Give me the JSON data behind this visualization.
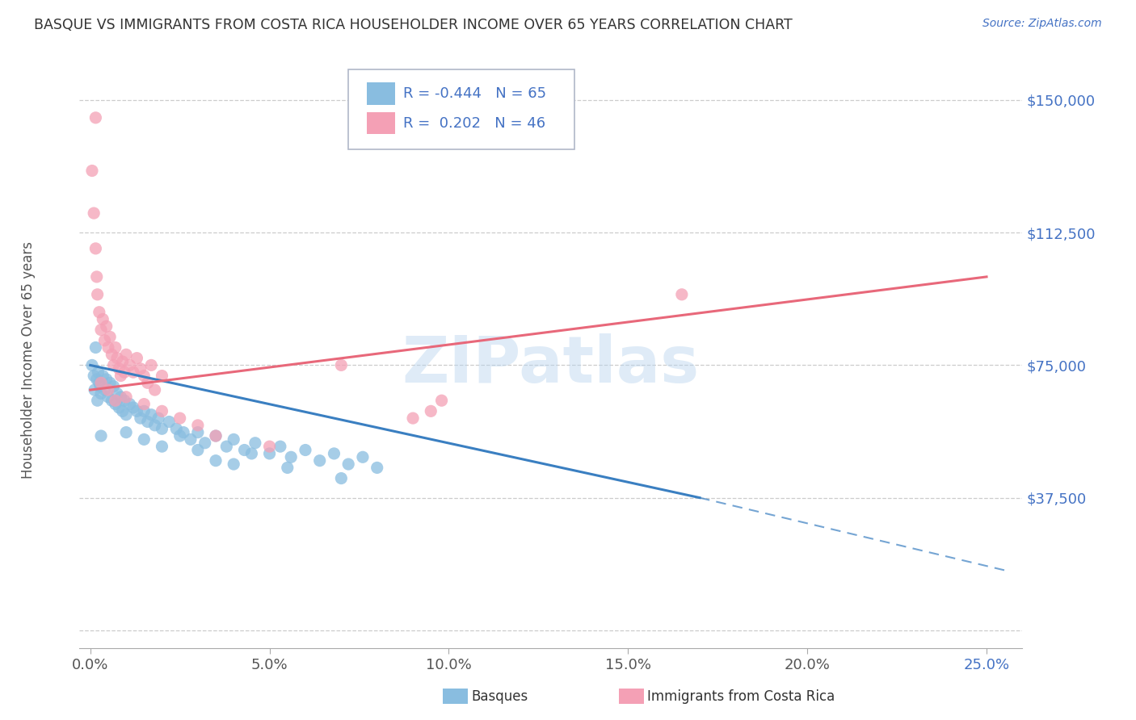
{
  "title": "BASQUE VS IMMIGRANTS FROM COSTA RICA HOUSEHOLDER INCOME OVER 65 YEARS CORRELATION CHART",
  "source": "Source: ZipAtlas.com",
  "ylabel": "Householder Income Over 65 years",
  "watermark": "ZIPatlas",
  "basque_color": "#89bde0",
  "costa_rica_color": "#f4a0b5",
  "blue_line_color": "#3a7fc1",
  "pink_line_color": "#e8687a",
  "title_color": "#333333",
  "axis_label_color": "#4472c4",
  "grid_color": "#cccccc",
  "background_color": "#ffffff",
  "legend_basque_R": -0.444,
  "legend_basque_N": 65,
  "legend_cr_R": 0.202,
  "legend_cr_N": 46,
  "ytick_vals": [
    0,
    37500,
    75000,
    112500,
    150000
  ],
  "ytick_labels": [
    "",
    "$37,500",
    "$75,000",
    "$112,500",
    "$150,000"
  ],
  "xtick_vals": [
    0,
    5,
    10,
    15,
    20,
    25
  ],
  "xtick_labels": [
    "0.0%",
    "5.0%",
    "10.0%",
    "15.0%",
    "20.0%",
    "25.0%"
  ],
  "xlim": [
    -0.3,
    26.0
  ],
  "ylim": [
    -5000,
    162000
  ],
  "basque_points": [
    [
      0.05,
      75000
    ],
    [
      0.1,
      72000
    ],
    [
      0.12,
      68000
    ],
    [
      0.15,
      80000
    ],
    [
      0.18,
      71000
    ],
    [
      0.2,
      65000
    ],
    [
      0.22,
      73000
    ],
    [
      0.25,
      70000
    ],
    [
      0.28,
      69000
    ],
    [
      0.3,
      67000
    ],
    [
      0.35,
      72000
    ],
    [
      0.4,
      68000
    ],
    [
      0.45,
      71000
    ],
    [
      0.5,
      66000
    ],
    [
      0.55,
      70000
    ],
    [
      0.6,
      65000
    ],
    [
      0.65,
      69000
    ],
    [
      0.7,
      64000
    ],
    [
      0.75,
      67000
    ],
    [
      0.8,
      63000
    ],
    [
      0.85,
      66000
    ],
    [
      0.9,
      62000
    ],
    [
      0.95,
      65000
    ],
    [
      1.0,
      61000
    ],
    [
      1.1,
      64000
    ],
    [
      1.2,
      63000
    ],
    [
      1.3,
      62000
    ],
    [
      1.4,
      60000
    ],
    [
      1.5,
      62000
    ],
    [
      1.6,
      59000
    ],
    [
      1.7,
      61000
    ],
    [
      1.8,
      58000
    ],
    [
      1.9,
      60000
    ],
    [
      2.0,
      57000
    ],
    [
      2.2,
      59000
    ],
    [
      2.4,
      57000
    ],
    [
      2.6,
      56000
    ],
    [
      2.8,
      54000
    ],
    [
      3.0,
      56000
    ],
    [
      3.2,
      53000
    ],
    [
      3.5,
      55000
    ],
    [
      3.8,
      52000
    ],
    [
      4.0,
      54000
    ],
    [
      4.3,
      51000
    ],
    [
      4.6,
      53000
    ],
    [
      5.0,
      50000
    ],
    [
      5.3,
      52000
    ],
    [
      5.6,
      49000
    ],
    [
      6.0,
      51000
    ],
    [
      6.4,
      48000
    ],
    [
      6.8,
      50000
    ],
    [
      7.2,
      47000
    ],
    [
      7.6,
      49000
    ],
    [
      8.0,
      46000
    ],
    [
      1.0,
      56000
    ],
    [
      1.5,
      54000
    ],
    [
      2.0,
      52000
    ],
    [
      2.5,
      55000
    ],
    [
      3.0,
      51000
    ],
    [
      3.5,
      48000
    ],
    [
      4.0,
      47000
    ],
    [
      4.5,
      50000
    ],
    [
      5.5,
      46000
    ],
    [
      7.0,
      43000
    ],
    [
      0.3,
      55000
    ]
  ],
  "costa_rica_points": [
    [
      0.05,
      130000
    ],
    [
      0.1,
      118000
    ],
    [
      0.15,
      108000
    ],
    [
      0.18,
      100000
    ],
    [
      0.2,
      95000
    ],
    [
      0.25,
      90000
    ],
    [
      0.3,
      85000
    ],
    [
      0.35,
      88000
    ],
    [
      0.4,
      82000
    ],
    [
      0.45,
      86000
    ],
    [
      0.5,
      80000
    ],
    [
      0.55,
      83000
    ],
    [
      0.6,
      78000
    ],
    [
      0.65,
      75000
    ],
    [
      0.7,
      80000
    ],
    [
      0.75,
      77000
    ],
    [
      0.8,
      74000
    ],
    [
      0.85,
      72000
    ],
    [
      0.9,
      76000
    ],
    [
      0.95,
      73000
    ],
    [
      1.0,
      78000
    ],
    [
      1.1,
      75000
    ],
    [
      1.2,
      73000
    ],
    [
      1.3,
      77000
    ],
    [
      1.4,
      74000
    ],
    [
      1.5,
      72000
    ],
    [
      1.6,
      70000
    ],
    [
      1.7,
      75000
    ],
    [
      1.8,
      68000
    ],
    [
      2.0,
      72000
    ],
    [
      0.3,
      70000
    ],
    [
      0.5,
      68000
    ],
    [
      0.7,
      65000
    ],
    [
      1.0,
      66000
    ],
    [
      1.5,
      64000
    ],
    [
      2.0,
      62000
    ],
    [
      2.5,
      60000
    ],
    [
      3.0,
      58000
    ],
    [
      3.5,
      55000
    ],
    [
      5.0,
      52000
    ],
    [
      7.0,
      75000
    ],
    [
      16.5,
      95000
    ],
    [
      0.15,
      145000
    ],
    [
      9.5,
      62000
    ],
    [
      9.8,
      65000
    ],
    [
      9.0,
      60000
    ]
  ],
  "blue_reg_x0": 0,
  "blue_reg_y0": 75000,
  "blue_reg_x1": 17,
  "blue_reg_y1": 37500,
  "blue_dash_x0": 17,
  "blue_dash_y0": 37500,
  "blue_dash_x1": 25.5,
  "blue_dash_y1": 17000,
  "pink_reg_x0": 0,
  "pink_reg_y0": 68000,
  "pink_reg_x1": 25,
  "pink_reg_y1": 100000
}
